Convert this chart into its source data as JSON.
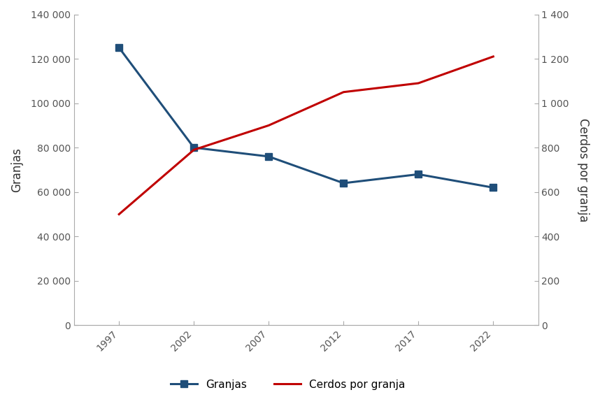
{
  "years": [
    1997,
    2002,
    2007,
    2012,
    2017,
    2022
  ],
  "granjas": [
    125000,
    80000,
    76000,
    64000,
    68000,
    62000
  ],
  "cerdos_por_granja": [
    500,
    790,
    900,
    1050,
    1090,
    1210
  ],
  "left_ylabel": "Granjas",
  "right_ylabel": "Cerdos por granja",
  "left_ylim": [
    0,
    140000
  ],
  "left_yticks": [
    0,
    20000,
    40000,
    60000,
    80000,
    100000,
    120000,
    140000
  ],
  "right_ylim": [
    0,
    1400
  ],
  "right_yticks": [
    0,
    200,
    400,
    600,
    800,
    1000,
    1200,
    1400
  ],
  "line1_color": "#1f4e79",
  "line2_color": "#c00000",
  "line1_label": "Granjas",
  "line2_label": "Cerdos por granja",
  "marker1": "s",
  "marker2": "None",
  "linewidth": 2.2,
  "markersize": 7,
  "bg_color": "#ffffff",
  "spine_color": "#aaaaaa",
  "tick_label_color": "#555555",
  "axis_label_color": "#333333",
  "tick_color": "#aaaaaa",
  "xlim": [
    1994,
    2025
  ],
  "figsize": [
    8.58,
    5.78
  ],
  "dpi": 100
}
